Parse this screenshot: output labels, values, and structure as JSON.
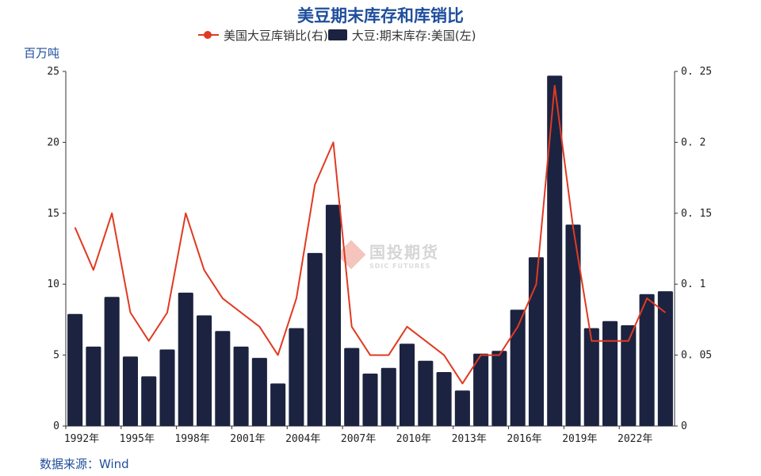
{
  "header": {
    "title": "美豆期末库存和库销比"
  },
  "legend": {
    "line_label": "美国大豆库销比(右)",
    "bar_label": "大豆:期末库存:美国(左)"
  },
  "unit_label": "百万吨",
  "source_label": "数据来源：Wind",
  "watermark": {
    "name": "国投期货",
    "english": "SDIC FUTURES"
  },
  "colors": {
    "bar": "#1c2340",
    "line": "#e03a22",
    "title": "#1f4e9c"
  },
  "chart_data": {
    "type": "bar",
    "categories": [
      "1992年",
      "1993年",
      "1994年",
      "1995年",
      "1996年",
      "1997年",
      "1998年",
      "1999年",
      "2000年",
      "2001年",
      "2002年",
      "2003年",
      "2004年",
      "2005年",
      "2006年",
      "2007年",
      "2008年",
      "2009年",
      "2010年",
      "2011年",
      "2012年",
      "2013年",
      "2014年",
      "2015年",
      "2016年",
      "2017年",
      "2018年",
      "2019年",
      "2020年",
      "2021年",
      "2022年",
      "2023年",
      "2024年"
    ],
    "x_tick_labels": [
      "1992年",
      "1995年",
      "1998年",
      "2001年",
      "2004年",
      "2007年",
      "2010年",
      "2013年",
      "2016年",
      "2019年",
      "2022年"
    ],
    "series": [
      {
        "name": "大豆:期末库存:美国(左)",
        "type": "bar",
        "axis": "left",
        "values": [
          7.9,
          5.6,
          9.1,
          4.9,
          3.5,
          5.4,
          9.4,
          7.8,
          6.7,
          5.6,
          4.8,
          3.0,
          6.9,
          12.2,
          15.6,
          5.5,
          3.7,
          4.1,
          5.8,
          4.6,
          3.8,
          2.5,
          5.1,
          5.3,
          8.2,
          11.9,
          24.7,
          14.2,
          6.9,
          7.4,
          7.1,
          9.3,
          9.5
        ]
      },
      {
        "name": "美国大豆库销比(右)",
        "type": "line",
        "axis": "right",
        "values": [
          0.14,
          0.11,
          0.15,
          0.08,
          0.06,
          0.08,
          0.15,
          0.11,
          0.09,
          0.08,
          0.07,
          0.05,
          0.09,
          0.17,
          0.2,
          0.07,
          0.05,
          0.05,
          0.07,
          0.06,
          0.05,
          0.03,
          0.05,
          0.05,
          0.07,
          0.1,
          0.24,
          0.14,
          0.06,
          0.06,
          0.06,
          0.09,
          0.08
        ]
      }
    ],
    "y_left": {
      "min": 0,
      "max": 25,
      "ticks": [
        "0",
        "5",
        "10",
        "15",
        "20",
        "25"
      ]
    },
    "y_right": {
      "min": 0,
      "max": 0.25,
      "ticks": [
        "0",
        "0.05",
        "0.1",
        "0.15",
        "0.2",
        "0.25"
      ]
    },
    "legend_position": "top-center",
    "grid": false
  }
}
